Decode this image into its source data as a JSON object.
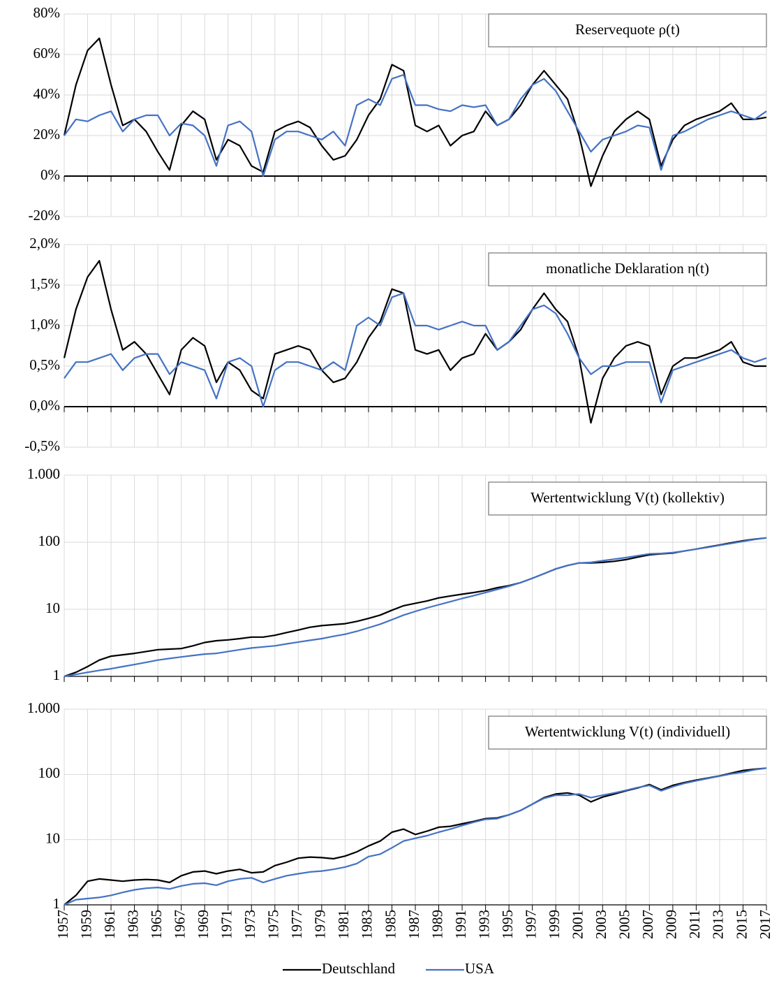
{
  "chart_data": [
    {
      "type": "line",
      "title": "Reservequote ρ(t)",
      "log": false,
      "grid": true,
      "zero_line": true,
      "xlim": [
        1957,
        2017
      ],
      "ylim": [
        -20,
        80
      ],
      "yticks": [
        {
          "value": -20,
          "label": "-20%"
        },
        {
          "value": 0,
          "label": "0%"
        },
        {
          "value": 20,
          "label": "20%"
        },
        {
          "value": 40,
          "label": "40%"
        },
        {
          "value": 60,
          "label": "60%"
        },
        {
          "value": 80,
          "label": "80%"
        }
      ],
      "x": [
        1957,
        1958,
        1959,
        1960,
        1961,
        1962,
        1963,
        1964,
        1965,
        1966,
        1967,
        1968,
        1969,
        1970,
        1971,
        1972,
        1973,
        1974,
        1975,
        1976,
        1977,
        1978,
        1979,
        1980,
        1981,
        1982,
        1983,
        1984,
        1985,
        1986,
        1987,
        1988,
        1989,
        1990,
        1991,
        1992,
        1993,
        1994,
        1995,
        1996,
        1997,
        1998,
        1999,
        2000,
        2001,
        2002,
        2003,
        2004,
        2005,
        2006,
        2007,
        2008,
        2009,
        2010,
        2011,
        2012,
        2013,
        2014,
        2015,
        2016,
        2017
      ],
      "series": [
        {
          "name": "Deutschland",
          "color": "#000000",
          "values": [
            20,
            45,
            62,
            68,
            45,
            25,
            28,
            22,
            12,
            3,
            25,
            32,
            28,
            8,
            18,
            15,
            5,
            2,
            22,
            25,
            27,
            24,
            15,
            8,
            10,
            18,
            30,
            38,
            55,
            52,
            25,
            22,
            25,
            15,
            20,
            22,
            32,
            25,
            28,
            35,
            45,
            52,
            45,
            38,
            20,
            -5,
            10,
            22,
            28,
            32,
            28,
            5,
            18,
            25,
            28,
            30,
            32,
            36,
            28,
            28,
            29
          ]
        },
        {
          "name": "USA",
          "color": "#4472c4",
          "values": [
            20,
            28,
            27,
            30,
            32,
            22,
            28,
            30,
            30,
            20,
            26,
            25,
            20,
            5,
            25,
            27,
            22,
            0,
            18,
            22,
            22,
            20,
            18,
            22,
            15,
            35,
            38,
            35,
            48,
            50,
            35,
            35,
            33,
            32,
            35,
            34,
            35,
            25,
            28,
            38,
            45,
            48,
            42,
            32,
            22,
            12,
            18,
            20,
            22,
            25,
            24,
            3,
            20,
            22,
            25,
            28,
            30,
            32,
            30,
            28,
            32
          ]
        }
      ]
    },
    {
      "type": "line",
      "title": "monatliche Deklaration η(t)",
      "log": false,
      "grid": true,
      "zero_line": true,
      "xlim": [
        1957,
        2017
      ],
      "ylim": [
        -0.5,
        2
      ],
      "yticks": [
        {
          "value": -0.5,
          "label": "-0,5%"
        },
        {
          "value": 0,
          "label": "0,0%"
        },
        {
          "value": 0.5,
          "label": "0,5%"
        },
        {
          "value": 1,
          "label": "1,0%"
        },
        {
          "value": 1.5,
          "label": "1,5%"
        },
        {
          "value": 2,
          "label": "2,0%"
        }
      ],
      "x": [
        1957,
        1958,
        1959,
        1960,
        1961,
        1962,
        1963,
        1964,
        1965,
        1966,
        1967,
        1968,
        1969,
        1970,
        1971,
        1972,
        1973,
        1974,
        1975,
        1976,
        1977,
        1978,
        1979,
        1980,
        1981,
        1982,
        1983,
        1984,
        1985,
        1986,
        1987,
        1988,
        1989,
        1990,
        1991,
        1992,
        1993,
        1994,
        1995,
        1996,
        1997,
        1998,
        1999,
        2000,
        2001,
        2002,
        2003,
        2004,
        2005,
        2006,
        2007,
        2008,
        2009,
        2010,
        2011,
        2012,
        2013,
        2014,
        2015,
        2016,
        2017
      ],
      "series": [
        {
          "name": "Deutschland",
          "color": "#000000",
          "values": [
            0.6,
            1.2,
            1.6,
            1.8,
            1.2,
            0.7,
            0.8,
            0.65,
            0.4,
            0.15,
            0.7,
            0.85,
            0.75,
            0.3,
            0.55,
            0.45,
            0.2,
            0.1,
            0.65,
            0.7,
            0.75,
            0.7,
            0.45,
            0.3,
            0.35,
            0.55,
            0.85,
            1.05,
            1.45,
            1.4,
            0.7,
            0.65,
            0.7,
            0.45,
            0.6,
            0.65,
            0.9,
            0.7,
            0.8,
            0.95,
            1.2,
            1.4,
            1.2,
            1.05,
            0.6,
            -0.2,
            0.35,
            0.6,
            0.75,
            0.8,
            0.75,
            0.15,
            0.5,
            0.6,
            0.6,
            0.65,
            0.7,
            0.8,
            0.55,
            0.5,
            0.5
          ]
        },
        {
          "name": "USA",
          "color": "#4472c4",
          "values": [
            0.35,
            0.55,
            0.55,
            0.6,
            0.65,
            0.45,
            0.6,
            0.65,
            0.65,
            0.4,
            0.55,
            0.5,
            0.45,
            0.1,
            0.55,
            0.6,
            0.5,
            0.0,
            0.45,
            0.55,
            0.55,
            0.5,
            0.45,
            0.55,
            0.45,
            1.0,
            1.1,
            1.0,
            1.35,
            1.4,
            1.0,
            1.0,
            0.95,
            1.0,
            1.05,
            1.0,
            1.0,
            0.7,
            0.8,
            1.0,
            1.2,
            1.25,
            1.15,
            0.9,
            0.6,
            0.4,
            0.5,
            0.5,
            0.55,
            0.55,
            0.55,
            0.05,
            0.45,
            0.5,
            0.55,
            0.6,
            0.65,
            0.7,
            0.6,
            0.55,
            0.6
          ]
        }
      ]
    },
    {
      "type": "line",
      "title": "Wertentwicklung V(t) (kollektiv)",
      "log": true,
      "grid": true,
      "zero_line": false,
      "xlim": [
        1957,
        2017
      ],
      "ylim": [
        1,
        1000
      ],
      "yticks": [
        1,
        10,
        100,
        {
          "value": 1000,
          "label": "1.000"
        }
      ],
      "x": [
        1957,
        1958,
        1959,
        1960,
        1961,
        1962,
        1963,
        1964,
        1965,
        1966,
        1967,
        1968,
        1969,
        1970,
        1971,
        1972,
        1973,
        1974,
        1975,
        1976,
        1977,
        1978,
        1979,
        1980,
        1981,
        1982,
        1983,
        1984,
        1985,
        1986,
        1987,
        1988,
        1989,
        1990,
        1991,
        1992,
        1993,
        1994,
        1995,
        1996,
        1997,
        1998,
        1999,
        2000,
        2001,
        2002,
        2003,
        2004,
        2005,
        2006,
        2007,
        2008,
        2009,
        2010,
        2011,
        2012,
        2013,
        2014,
        2015,
        2016,
        2017
      ],
      "series": [
        {
          "name": "Deutschland",
          "color": "#000000",
          "values": [
            1,
            1.15,
            1.4,
            1.75,
            2.0,
            2.1,
            2.2,
            2.35,
            2.5,
            2.55,
            2.6,
            2.85,
            3.2,
            3.4,
            3.5,
            3.65,
            3.85,
            3.85,
            4.1,
            4.5,
            4.9,
            5.4,
            5.7,
            5.9,
            6.1,
            6.6,
            7.3,
            8.2,
            9.7,
            11.3,
            12.3,
            13.3,
            14.8,
            15.8,
            16.8,
            17.8,
            19,
            21,
            22.5,
            25,
            29,
            34,
            40,
            45,
            49,
            49,
            50,
            52,
            55,
            60,
            65,
            67,
            69,
            74,
            79,
            85,
            91,
            98,
            105,
            111,
            116
          ]
        },
        {
          "name": "USA",
          "color": "#4472c4",
          "values": [
            1,
            1.07,
            1.15,
            1.23,
            1.3,
            1.4,
            1.5,
            1.62,
            1.75,
            1.85,
            1.95,
            2.05,
            2.15,
            2.2,
            2.35,
            2.5,
            2.65,
            2.75,
            2.85,
            3.05,
            3.25,
            3.45,
            3.65,
            3.95,
            4.25,
            4.7,
            5.3,
            6.0,
            7.0,
            8.2,
            9.3,
            10.5,
            11.7,
            13.0,
            14.5,
            16.0,
            17.8,
            19.8,
            22,
            25,
            29,
            34,
            40,
            45,
            49,
            50,
            53,
            56,
            59,
            63,
            67,
            68,
            70,
            74,
            79,
            84,
            90,
            96,
            103,
            110,
            116
          ]
        }
      ]
    },
    {
      "type": "line",
      "title": "Wertentwicklung V(t) (individuell)",
      "log": true,
      "grid": true,
      "zero_line": false,
      "xlim": [
        1957,
        2017
      ],
      "xticks": [
        1957,
        1959,
        1961,
        1963,
        1965,
        1967,
        1969,
        1971,
        1973,
        1975,
        1977,
        1979,
        1981,
        1983,
        1985,
        1987,
        1989,
        1991,
        1993,
        1995,
        1997,
        1999,
        2001,
        2003,
        2005,
        2007,
        2009,
        2011,
        2013,
        2015,
        2017
      ],
      "ylim": [
        1,
        1000
      ],
      "yticks": [
        1,
        10,
        100,
        {
          "value": 1000,
          "label": "1.000"
        }
      ],
      "x": [
        1957,
        1958,
        1959,
        1960,
        1961,
        1962,
        1963,
        1964,
        1965,
        1966,
        1967,
        1968,
        1969,
        1970,
        1971,
        1972,
        1973,
        1974,
        1975,
        1976,
        1977,
        1978,
        1979,
        1980,
        1981,
        1982,
        1983,
        1984,
        1985,
        1986,
        1987,
        1988,
        1989,
        1990,
        1991,
        1992,
        1993,
        1994,
        1995,
        1996,
        1997,
        1998,
        1999,
        2000,
        2001,
        2002,
        2003,
        2004,
        2005,
        2006,
        2007,
        2008,
        2009,
        2010,
        2011,
        2012,
        2013,
        2014,
        2015,
        2016,
        2017
      ],
      "series": [
        {
          "name": "Deutschland",
          "color": "#000000",
          "values": [
            1,
            1.4,
            2.3,
            2.5,
            2.4,
            2.3,
            2.4,
            2.45,
            2.4,
            2.2,
            2.8,
            3.2,
            3.3,
            3.0,
            3.3,
            3.5,
            3.1,
            3.2,
            4.0,
            4.5,
            5.2,
            5.4,
            5.3,
            5.1,
            5.6,
            6.5,
            8.0,
            9.5,
            13.0,
            14.5,
            12.0,
            13.5,
            15.5,
            16.0,
            17.5,
            19,
            21,
            21.5,
            24,
            28,
            35,
            44,
            50,
            52,
            48,
            38,
            45,
            50,
            56,
            62,
            70,
            58,
            68,
            75,
            82,
            88,
            95,
            105,
            115,
            120,
            125
          ]
        },
        {
          "name": "USA",
          "color": "#4472c4",
          "values": [
            1,
            1.2,
            1.25,
            1.3,
            1.4,
            1.55,
            1.7,
            1.8,
            1.85,
            1.75,
            1.95,
            2.1,
            2.15,
            2.0,
            2.3,
            2.5,
            2.6,
            2.2,
            2.5,
            2.8,
            3.0,
            3.2,
            3.3,
            3.5,
            3.8,
            4.3,
            5.5,
            6.0,
            7.5,
            9.5,
            10.5,
            11.5,
            13,
            14.5,
            16.5,
            18.5,
            20.5,
            21,
            24,
            28,
            35,
            43,
            48,
            48,
            50,
            44,
            48,
            52,
            57,
            63,
            68,
            56,
            65,
            73,
            80,
            87,
            94,
            102,
            108,
            118,
            125
          ]
        }
      ]
    }
  ]
}
